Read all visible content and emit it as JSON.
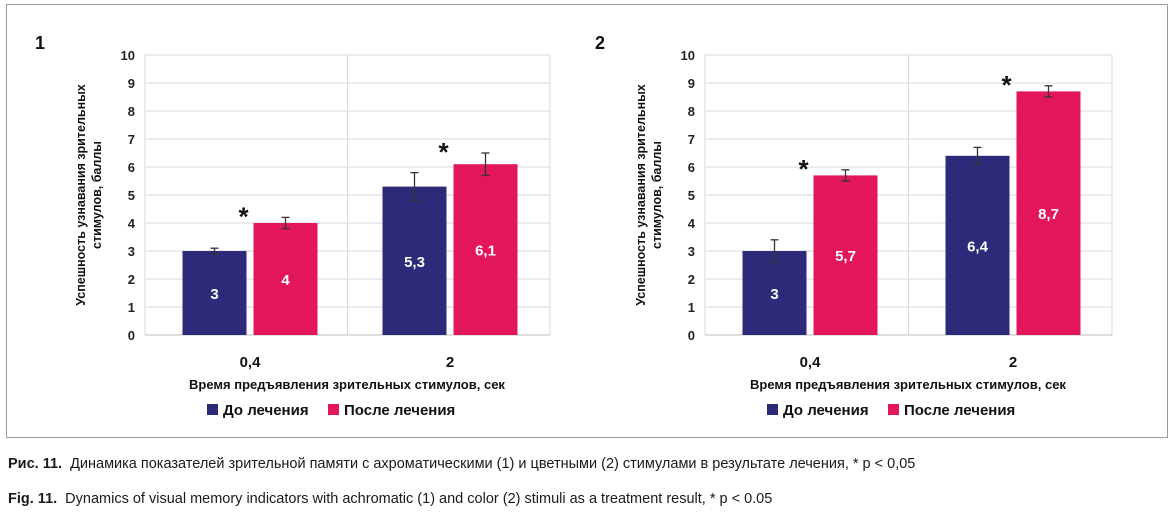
{
  "colors": {
    "before": "#2e2a7a",
    "after": "#e3165b",
    "grid": "#d9d9d9"
  },
  "chart_data": [
    {
      "type": "bar",
      "panel_label": "1",
      "categories": [
        "0,4",
        "2"
      ],
      "series": [
        {
          "name": "До лечения",
          "values": [
            3,
            5.3
          ],
          "labels": [
            "3",
            "5,3"
          ],
          "errors": [
            0.1,
            0.5
          ]
        },
        {
          "name": "После лечения",
          "values": [
            4,
            6.1
          ],
          "labels": [
            "4",
            "6,1"
          ],
          "errors": [
            0.2,
            0.4
          ]
        }
      ],
      "significance": [
        "*",
        "*"
      ],
      "ylabel": "Успешность узнавания зрительных стимулов, баллы",
      "xlabel": "Время предъявления зрительных стимулов, сек",
      "ylim": [
        0,
        10
      ],
      "yticks": [
        "0",
        "1",
        "2",
        "3",
        "4",
        "5",
        "6",
        "7",
        "8",
        "9",
        "10"
      ],
      "grid": true,
      "legend": "bottom"
    },
    {
      "type": "bar",
      "panel_label": "2",
      "categories": [
        "0,4",
        "2"
      ],
      "series": [
        {
          "name": "До лечения",
          "values": [
            3,
            6.4
          ],
          "labels": [
            "3",
            "6,4"
          ],
          "errors": [
            0.4,
            0.3
          ]
        },
        {
          "name": "После лечения",
          "values": [
            5.7,
            8.7
          ],
          "labels": [
            "5,7",
            "8,7"
          ],
          "errors": [
            0.2,
            0.2
          ]
        }
      ],
      "significance": [
        "*",
        "*"
      ],
      "ylabel": "Успешность узнавания зрительных стимулов, баллы",
      "xlabel": "Время предъявления зрительных стимулов, сек",
      "ylim": [
        0,
        10
      ],
      "yticks": [
        "0",
        "1",
        "2",
        "3",
        "4",
        "5",
        "6",
        "7",
        "8",
        "9",
        "10"
      ],
      "grid": true,
      "legend": "bottom"
    }
  ],
  "caption": {
    "ru_label": "Рис. 11.",
    "ru_text": "Динамика показателей зрительной памяти с ахроматическими (1) и цветными (2) стимулами в результате лечения, * p < 0,05",
    "en_label": "Fig. 11.",
    "en_text": "Dynamics of visual memory indicators with achromatic (1) and color (2) stimuli as a treatment result, * p < 0.05"
  }
}
